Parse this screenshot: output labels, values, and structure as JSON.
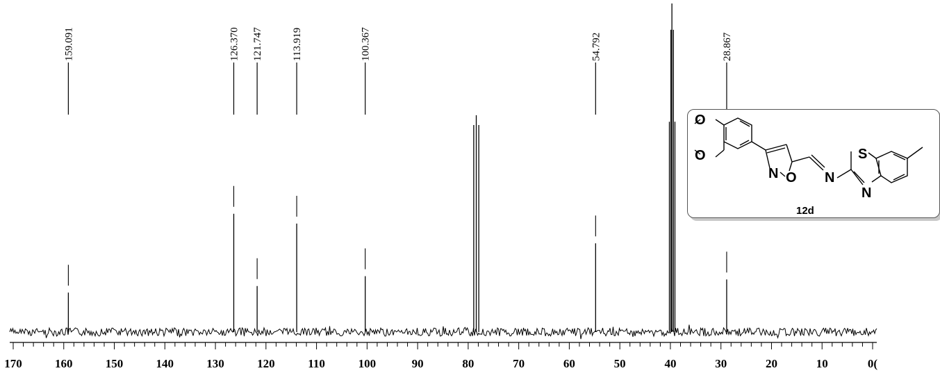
{
  "chart_data": {
    "type": "line",
    "title": "",
    "xlabel": "",
    "ylabel": "",
    "xlim": [
      170,
      0
    ],
    "x_reversed": true,
    "x_ticks": [
      170,
      160,
      150,
      140,
      130,
      120,
      110,
      100,
      90,
      80,
      70,
      60,
      50,
      40,
      30,
      20,
      10,
      0
    ],
    "x_tick_labels": [
      "170",
      "160",
      "150",
      "140",
      "130",
      "120",
      "110",
      "100",
      "90",
      "80",
      "70",
      "60",
      "50",
      "40",
      "30",
      "20",
      "10",
      "0("
    ],
    "peaks": [
      {
        "ppm": 159.091,
        "label": "159.091",
        "intensity": 0.12
      },
      {
        "ppm": 126.37,
        "label": "126.370",
        "intensity": 0.36
      },
      {
        "ppm": 121.747,
        "label": "121.747",
        "intensity": 0.14
      },
      {
        "ppm": 113.919,
        "label": "113.919",
        "intensity": 0.33
      },
      {
        "ppm": 100.367,
        "label": "100.367",
        "intensity": 0.17
      },
      {
        "ppm": 78.9,
        "label": "",
        "intensity": 0.63
      },
      {
        "ppm": 78.4,
        "label": "",
        "intensity": 0.66
      },
      {
        "ppm": 77.9,
        "label": "",
        "intensity": 0.63
      },
      {
        "ppm": 54.792,
        "label": "54.792",
        "intensity": 0.27
      },
      {
        "ppm": 40.2,
        "label": "",
        "intensity": 0.64
      },
      {
        "ppm": 39.9,
        "label": "",
        "intensity": 0.92
      },
      {
        "ppm": 39.7,
        "label": "",
        "intensity": 1.0
      },
      {
        "ppm": 39.4,
        "label": "",
        "intensity": 0.92
      },
      {
        "ppm": 39.1,
        "label": "",
        "intensity": 0.64
      },
      {
        "ppm": 28.867,
        "label": "28.867",
        "intensity": 0.16
      }
    ]
  },
  "structure": {
    "compound_label": "12d",
    "atoms": {
      "o1": "O",
      "o2": "O",
      "n_isoxazole": "N",
      "o_isoxazole": "O",
      "n_imine": "N",
      "s_thiazole": "S",
      "n_thiazole": "N"
    }
  }
}
